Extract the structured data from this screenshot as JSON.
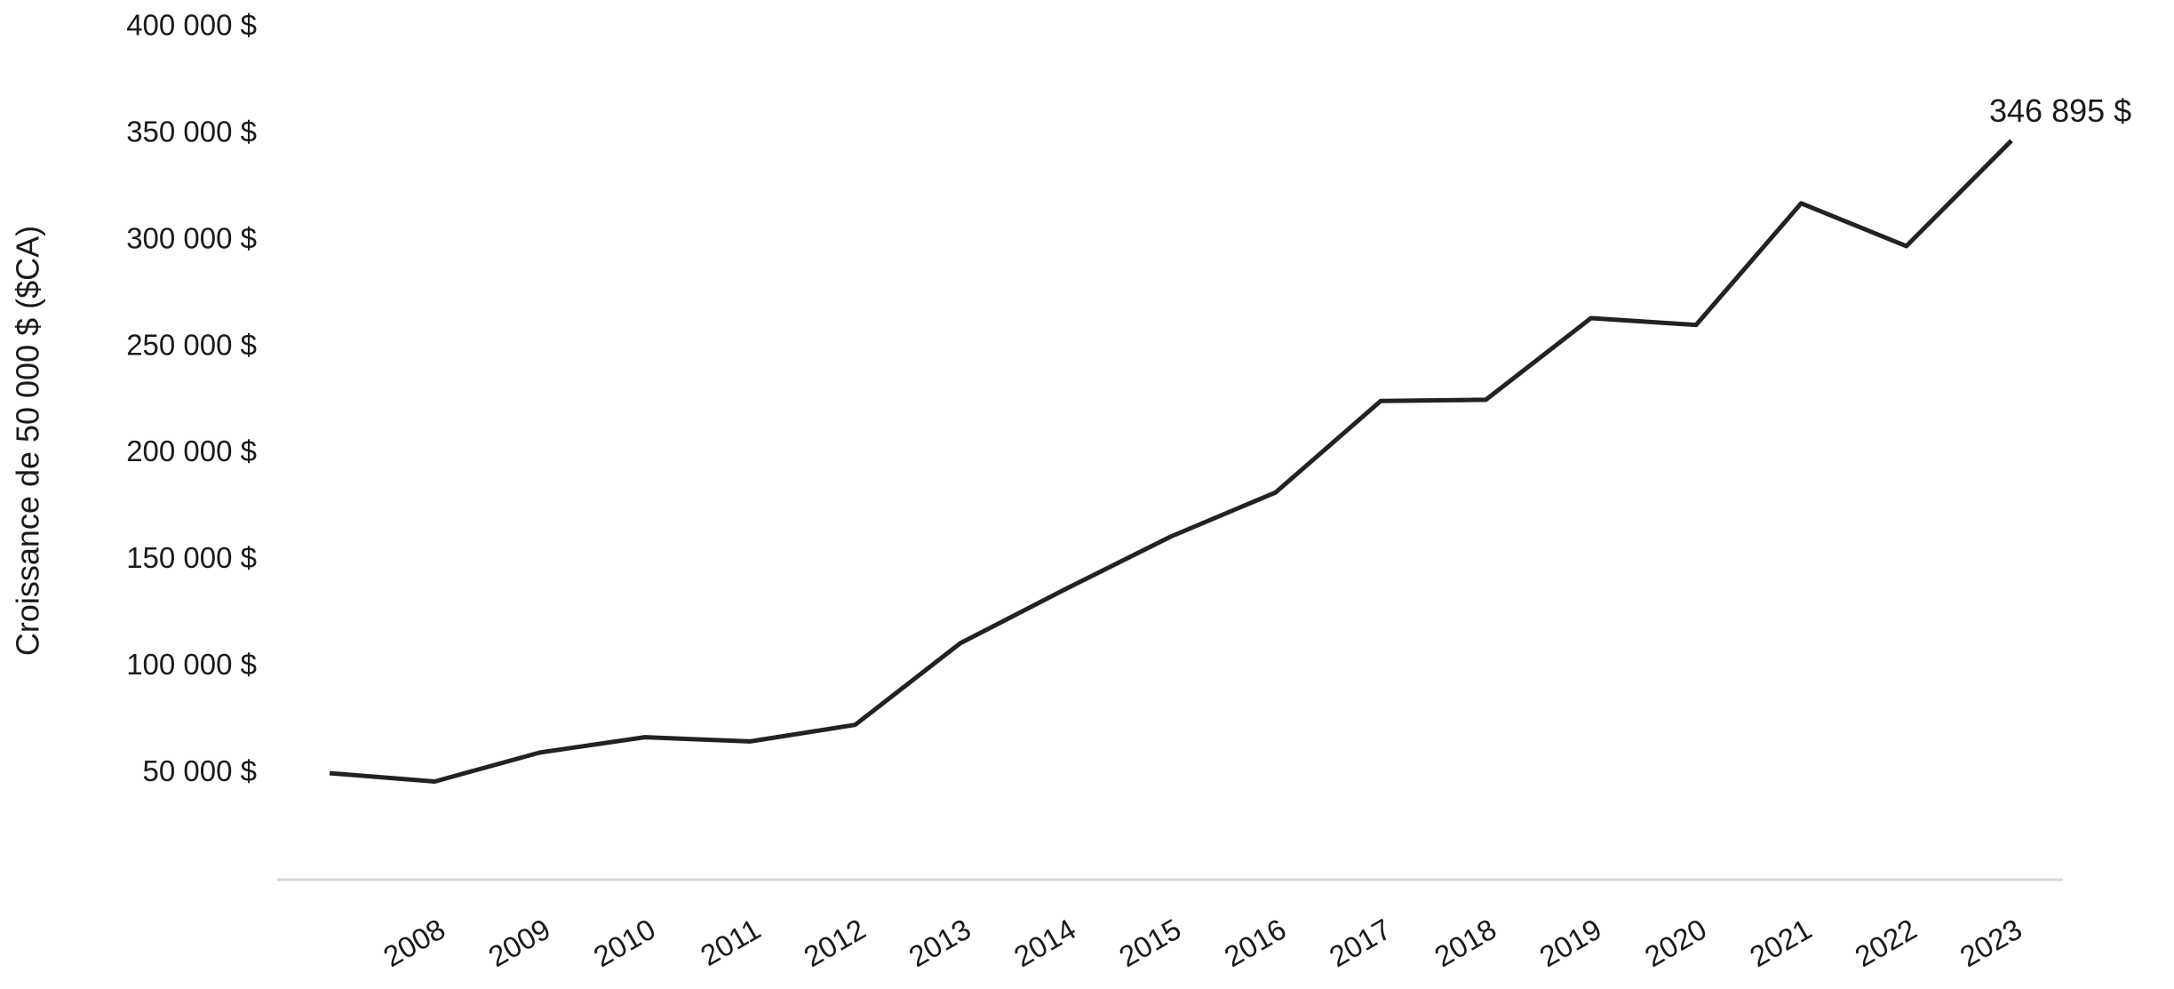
{
  "chart_data": {
    "type": "line",
    "y_label": "Croissance de 50 000 $ ($CA)",
    "categories": [
      null,
      "2008",
      "2009",
      "2010",
      "2011",
      "2012",
      "2013",
      "2014",
      "2015",
      "2016",
      "2017",
      "2018",
      "2019",
      "2020",
      "2021",
      "2022",
      "2023"
    ],
    "values": [
      50000,
      46100,
      59700,
      66900,
      64900,
      72700,
      111000,
      136400,
      161000,
      181800,
      224700,
      225300,
      263600,
      260400,
      317500,
      297400,
      346895
    ],
    "value_labels": [
      null,
      null,
      null,
      null,
      null,
      null,
      null,
      null,
      null,
      null,
      null,
      null,
      null,
      null,
      null,
      null,
      "346 895 $"
    ],
    "color": "#222222",
    "ylim": [
      0,
      400000
    ],
    "yticks": [
      {
        "value": 50000,
        "label": "50 000 $"
      },
      {
        "value": 100000,
        "label": "100 000 $"
      },
      {
        "value": 150000,
        "label": "150 000 $"
      },
      {
        "value": 200000,
        "label": "200 000 $"
      },
      {
        "value": 250000,
        "label": "250 000 $"
      },
      {
        "value": 300000,
        "label": "300 000 $"
      },
      {
        "value": 350000,
        "label": "350 000 $"
      },
      {
        "value": 400000,
        "label": "400 000 $"
      }
    ],
    "grid": false
  }
}
